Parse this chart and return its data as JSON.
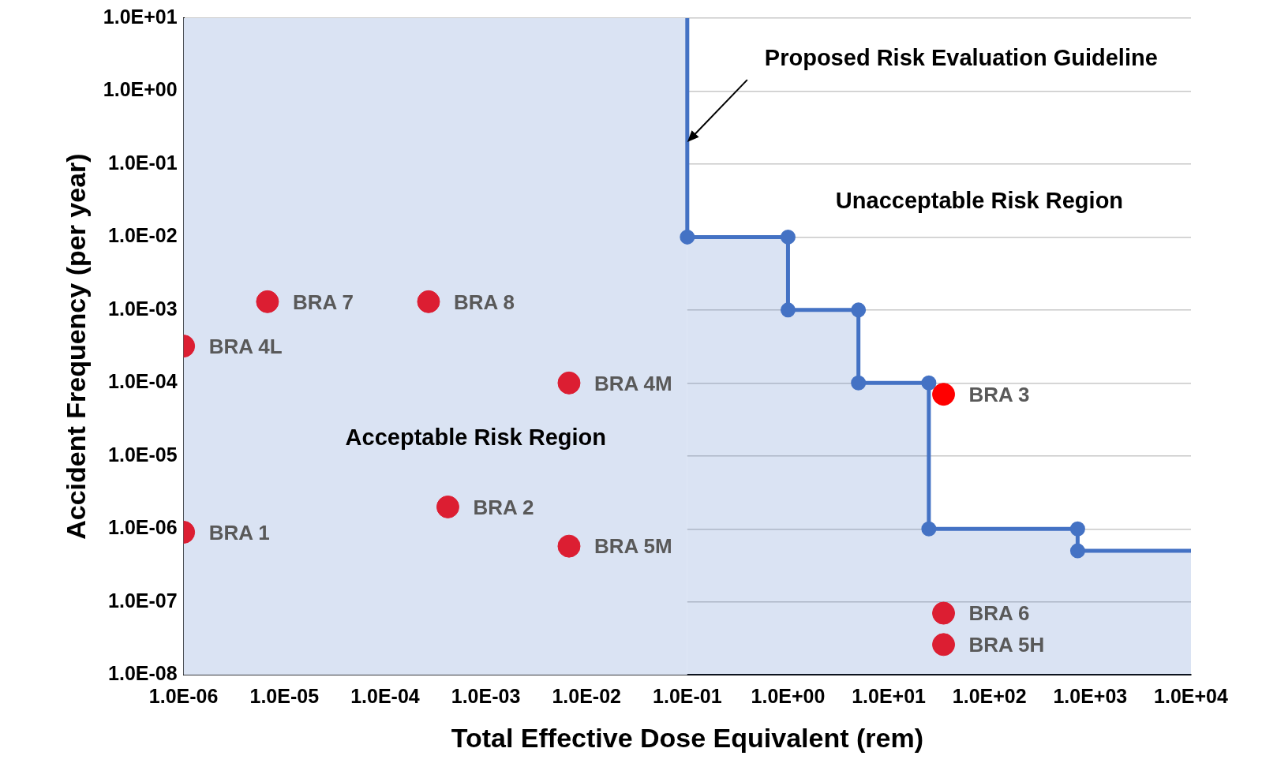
{
  "chart_data": {
    "type": "scatter",
    "xlabel": "Total Effective Dose Equivalent (rem)",
    "ylabel": "Accident Frequency (per year)",
    "log": "xy",
    "grid": "y",
    "legend": false,
    "marker": "circle",
    "xlim": [
      1e-06,
      10000.0
    ],
    "ylim": [
      1e-08,
      10
    ],
    "xticks": [
      {
        "value": 1e-06,
        "label": "1.0E-06"
      },
      {
        "value": 1e-05,
        "label": "1.0E-05"
      },
      {
        "value": 0.0001,
        "label": "1.0E-04"
      },
      {
        "value": 0.001,
        "label": "1.0E-03"
      },
      {
        "value": 0.01,
        "label": "1.0E-02"
      },
      {
        "value": 0.1,
        "label": "1.0E-01"
      },
      {
        "value": 1,
        "label": "1.0E+00"
      },
      {
        "value": 10,
        "label": "1.0E+01"
      },
      {
        "value": 100,
        "label": "1.0E+02"
      },
      {
        "value": 1000,
        "label": "1.0E+03"
      },
      {
        "value": 10000,
        "label": "1.0E+04"
      }
    ],
    "yticks": [
      {
        "value": 1e-08,
        "label": "1.0E-08"
      },
      {
        "value": 1e-07,
        "label": "1.0E-07"
      },
      {
        "value": 1e-06,
        "label": "1.0E-06"
      },
      {
        "value": 1e-05,
        "label": "1.0E-05"
      },
      {
        "value": 0.0001,
        "label": "1.0E-04"
      },
      {
        "value": 0.001,
        "label": "1.0E-03"
      },
      {
        "value": 0.01,
        "label": "1.0E-02"
      },
      {
        "value": 0.1,
        "label": "1.0E-01"
      },
      {
        "value": 1,
        "label": "1.0E+00"
      },
      {
        "value": 10,
        "label": "1.0E+01"
      }
    ],
    "series": [
      {
        "type": "area",
        "color": "#4472c4",
        "x": [
          0.1,
          0.1,
          1,
          1,
          5,
          5,
          25,
          25,
          750,
          750,
          10000
        ],
        "values": [
          10,
          0.01,
          0.01,
          0.001,
          0.001,
          0.0001,
          0.0001,
          1e-06,
          1e-06,
          5e-07,
          5e-07
        ]
      },
      {
        "name": "BRA 7",
        "color": "#dc1e32",
        "x": [
          6.8e-06
        ],
        "values": [
          0.0013
        ]
      },
      {
        "name": "BRA 8",
        "color": "#dc1e32",
        "x": [
          0.00027
        ],
        "values": [
          0.0013
        ]
      },
      {
        "name": "BRA 4L",
        "color": "#dc1e32",
        "x": [
          1e-06
        ],
        "values": [
          0.00032
        ]
      },
      {
        "name": "BRA 4M",
        "color": "#dc1e32",
        "x": [
          0.0067
        ],
        "values": [
          0.0001
        ]
      },
      {
        "name": "BRA 2",
        "color": "#dc1e32",
        "x": [
          0.00042
        ],
        "values": [
          2e-06
        ]
      },
      {
        "name": "BRA 1",
        "color": "#dc1e32",
        "x": [
          1e-06
        ],
        "values": [
          9e-07
        ]
      },
      {
        "name": "BRA 5M",
        "color": "#dc1e32",
        "x": [
          0.0067
        ],
        "values": [
          5.8e-07
        ]
      },
      {
        "name": "BRA 3",
        "color": "#ff0000",
        "x": [
          35
        ],
        "values": [
          7e-05
        ]
      },
      {
        "name": "BRA 6",
        "color": "#dc1e32",
        "x": [
          35
        ],
        "values": [
          7e-08
        ]
      },
      {
        "name": "BRA 5H",
        "color": "#dc1e32",
        "x": [
          35
        ],
        "values": [
          2.6e-08
        ]
      }
    ],
    "annotations": [
      {
        "text": "Proposed Risk Evaluation Guideline",
        "x": 0.1,
        "y": 0.2
      },
      "Unacceptable Risk Region"
    ],
    "bands": [
      {
        "axis": "x",
        "from": 1e-06,
        "to": 0.1,
        "label": "Acceptable Risk Region",
        "color": "#dae3f3"
      }
    ]
  }
}
